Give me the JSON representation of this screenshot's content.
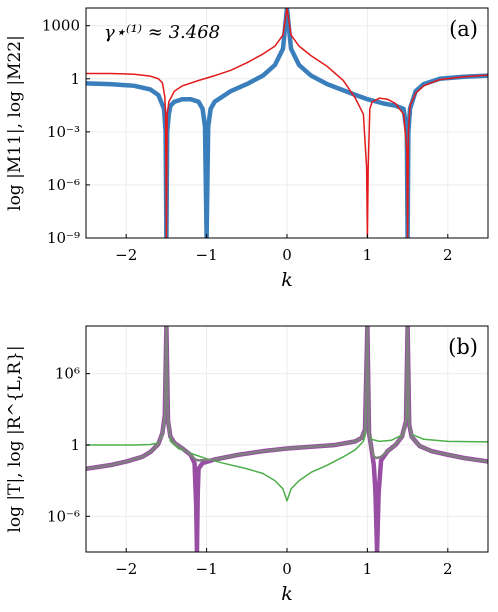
{
  "chart_data": [
    {
      "type": "line",
      "panel_label": "(a)",
      "annotation": "γ⋆⁽¹⁾ ≈ 3.468",
      "xlabel": "k",
      "ylabel": "log |M11|, log |M22|",
      "x_scale": "linear",
      "y_scale": "log",
      "xlim": [
        -2.5,
        2.5
      ],
      "ylim": [
        1e-09,
        10000
      ],
      "x_ticks": [
        -2,
        -1,
        0,
        1,
        2
      ],
      "x_tick_labels": [
        "−2",
        "−1",
        "0",
        "1",
        "2"
      ],
      "y_ticks": [
        1e-09,
        1e-06,
        0.001,
        1,
        1000
      ],
      "y_tick_labels": [
        "10⁻⁹",
        "10⁻⁶",
        "10⁻³",
        "1",
        "1000"
      ],
      "grid": true,
      "series": [
        {
          "color": "#3a7fbc",
          "style": "thick",
          "points": [
            [
              -2.5,
              0.55
            ],
            [
              -2.2,
              0.5
            ],
            [
              -1.9,
              0.4
            ],
            [
              -1.7,
              0.25
            ],
            [
              -1.6,
              0.12
            ],
            [
              -1.53,
              0.02
            ],
            [
              -1.51,
              0.001
            ],
            [
              -1.5,
              1e-09
            ],
            [
              -1.49,
              0.001
            ],
            [
              -1.47,
              0.01
            ],
            [
              -1.45,
              0.03
            ],
            [
              -1.4,
              0.05
            ],
            [
              -1.3,
              0.07
            ],
            [
              -1.2,
              0.07
            ],
            [
              -1.1,
              0.05
            ],
            [
              -1.05,
              0.02
            ],
            [
              -1.02,
              0.002
            ],
            [
              -1.0,
              1e-09
            ],
            [
              -0.98,
              0.002
            ],
            [
              -0.95,
              0.02
            ],
            [
              -0.9,
              0.05
            ],
            [
              -0.8,
              0.1
            ],
            [
              -0.7,
              0.2
            ],
            [
              -0.5,
              0.5
            ],
            [
              -0.3,
              1.5
            ],
            [
              -0.15,
              6
            ],
            [
              -0.05,
              50
            ],
            [
              0.0,
              10000
            ],
            [
              0.05,
              50
            ],
            [
              0.15,
              6
            ],
            [
              0.3,
              1.5
            ],
            [
              0.5,
              0.5
            ],
            [
              0.8,
              0.15
            ],
            [
              1.0,
              0.07
            ],
            [
              1.2,
              0.04
            ],
            [
              1.35,
              0.03
            ],
            [
              1.45,
              0.02
            ],
            [
              1.49,
              0.001
            ],
            [
              1.5,
              1e-09
            ],
            [
              1.51,
              0.001
            ],
            [
              1.53,
              0.02
            ],
            [
              1.6,
              0.2
            ],
            [
              1.7,
              0.5
            ],
            [
              1.9,
              1.0
            ],
            [
              2.2,
              1.3
            ],
            [
              2.5,
              1.5
            ]
          ]
        },
        {
          "color": "#e31a1c",
          "style": "thin",
          "points": [
            [
              -2.5,
              2.0
            ],
            [
              -2.2,
              2.0
            ],
            [
              -1.9,
              1.8
            ],
            [
              -1.7,
              1.4
            ],
            [
              -1.6,
              1.0
            ],
            [
              -1.55,
              0.6
            ],
            [
              -1.52,
              0.1
            ],
            [
              -1.51,
              0.01
            ],
            [
              -1.5,
              1e-09
            ],
            [
              -1.49,
              0.01
            ],
            [
              -1.47,
              0.05
            ],
            [
              -1.4,
              0.2
            ],
            [
              -1.3,
              0.4
            ],
            [
              -1.1,
              0.8
            ],
            [
              -0.9,
              1.5
            ],
            [
              -0.7,
              3
            ],
            [
              -0.5,
              8
            ],
            [
              -0.3,
              25
            ],
            [
              -0.15,
              70
            ],
            [
              -0.05,
              300
            ],
            [
              0.0,
              10000
            ],
            [
              0.05,
              300
            ],
            [
              0.15,
              70
            ],
            [
              0.3,
              20
            ],
            [
              0.5,
              5
            ],
            [
              0.7,
              0.8
            ],
            [
              0.85,
              0.08
            ],
            [
              0.95,
              0.01
            ],
            [
              0.99,
              1e-05
            ],
            [
              1.0,
              1e-09
            ],
            [
              1.01,
              1e-05
            ],
            [
              1.03,
              0.02
            ],
            [
              1.06,
              0.05
            ],
            [
              1.15,
              0.08
            ],
            [
              1.25,
              0.07
            ],
            [
              1.35,
              0.04
            ],
            [
              1.45,
              0.01
            ],
            [
              1.49,
              0.0001
            ],
            [
              1.5,
              1e-09
            ],
            [
              1.51,
              0.001
            ],
            [
              1.53,
              0.03
            ],
            [
              1.6,
              0.15
            ],
            [
              1.7,
              0.4
            ],
            [
              1.9,
              0.9
            ],
            [
              2.2,
              1.3
            ],
            [
              2.5,
              1.6
            ]
          ]
        }
      ]
    },
    {
      "type": "line",
      "panel_label": "(b)",
      "xlabel": "k",
      "ylabel": "log |T|, log |R^{L,R}|",
      "x_scale": "linear",
      "y_scale": "log",
      "xlim": [
        -2.5,
        2.5
      ],
      "ylim": [
        1e-09,
        10000000000.0
      ],
      "x_ticks": [
        -2,
        -1,
        0,
        1,
        2
      ],
      "x_tick_labels": [
        "−2",
        "−1",
        "0",
        "1",
        "2"
      ],
      "y_ticks": [
        1e-06,
        1,
        1000000.0
      ],
      "y_tick_labels": [
        "10⁻⁶",
        "1",
        "10⁶"
      ],
      "grid": true,
      "series": [
        {
          "color": "#984ea3",
          "style": "thick",
          "points": [
            [
              -2.5,
              0.01
            ],
            [
              -2.2,
              0.02
            ],
            [
              -2.0,
              0.04
            ],
            [
              -1.8,
              0.1
            ],
            [
              -1.7,
              0.25
            ],
            [
              -1.6,
              1.2
            ],
            [
              -1.55,
              10
            ],
            [
              -1.52,
              300
            ],
            [
              -1.5,
              10000000000.0
            ],
            [
              -1.48,
              100
            ],
            [
              -1.45,
              5
            ],
            [
              -1.4,
              1.5
            ],
            [
              -1.3,
              0.5
            ],
            [
              -1.2,
              0.15
            ],
            [
              -1.15,
              0.03
            ],
            [
              -1.13,
              1e-05
            ],
            [
              -1.12,
              1e-09
            ],
            [
              -1.11,
              0.0001
            ],
            [
              -1.1,
              0.01
            ],
            [
              -1.05,
              0.03
            ],
            [
              -0.9,
              0.06
            ],
            [
              -0.6,
              0.15
            ],
            [
              -0.3,
              0.3
            ],
            [
              0.0,
              0.5
            ],
            [
              0.3,
              0.7
            ],
            [
              0.6,
              1.0
            ],
            [
              0.85,
              2.0
            ],
            [
              0.93,
              4.0
            ],
            [
              0.97,
              20
            ],
            [
              1.0,
              10000000000.0
            ],
            [
              1.02,
              10
            ],
            [
              1.05,
              0.5
            ],
            [
              1.08,
              0.02
            ],
            [
              1.1,
              0.0001
            ],
            [
              1.12,
              1e-09
            ],
            [
              1.14,
              0.0001
            ],
            [
              1.17,
              0.05
            ],
            [
              1.25,
              0.3
            ],
            [
              1.35,
              1.0
            ],
            [
              1.43,
              5
            ],
            [
              1.48,
              100
            ],
            [
              1.5,
              10000000000.0
            ],
            [
              1.52,
              50
            ],
            [
              1.55,
              5
            ],
            [
              1.65,
              0.8
            ],
            [
              1.8,
              0.3
            ],
            [
              2.0,
              0.15
            ],
            [
              2.2,
              0.08
            ],
            [
              2.5,
              0.04
            ]
          ]
        },
        {
          "color": "#4daf4a",
          "style": "thin",
          "points": [
            [
              -2.5,
              1.0
            ],
            [
              -2.2,
              1.0
            ],
            [
              -1.9,
              1.0
            ],
            [
              -1.7,
              1.1
            ],
            [
              -1.6,
              1.5
            ],
            [
              -1.55,
              5
            ],
            [
              -1.52,
              100
            ],
            [
              -1.5,
              10000000000.0
            ],
            [
              -1.48,
              50
            ],
            [
              -1.45,
              2
            ],
            [
              -1.35,
              0.5
            ],
            [
              -1.2,
              0.2
            ],
            [
              -1.0,
              0.07
            ],
            [
              -0.8,
              0.03
            ],
            [
              -0.5,
              0.01
            ],
            [
              -0.3,
              0.004
            ],
            [
              -0.15,
              0.001
            ],
            [
              -0.05,
              0.0002
            ],
            [
              0.0,
              2e-05
            ],
            [
              0.05,
              0.0002
            ],
            [
              0.15,
              0.001
            ],
            [
              0.3,
              0.005
            ],
            [
              0.5,
              0.02
            ],
            [
              0.7,
              0.1
            ],
            [
              0.85,
              0.4
            ],
            [
              0.95,
              2
            ],
            [
              0.98,
              10
            ],
            [
              1.0,
              10000000000.0
            ],
            [
              1.02,
              10
            ],
            [
              1.05,
              3
            ],
            [
              1.15,
              2
            ],
            [
              1.3,
              2.5
            ],
            [
              1.45,
              8
            ],
            [
              1.49,
              200
            ],
            [
              1.5,
              10000000000.0
            ],
            [
              1.51,
              200
            ],
            [
              1.55,
              8
            ],
            [
              1.7,
              3
            ],
            [
              2.0,
              2
            ],
            [
              2.5,
              1.8
            ]
          ]
        },
        {
          "color": "#7f7f7f",
          "style": "medium",
          "points": [
            [
              -2.5,
              0.01
            ],
            [
              -2.2,
              0.02
            ],
            [
              -2.0,
              0.04
            ],
            [
              -1.8,
              0.1
            ],
            [
              -1.7,
              0.25
            ],
            [
              -1.6,
              1.2
            ],
            [
              -1.55,
              10
            ],
            [
              -1.52,
              300
            ],
            [
              -1.5,
              10000000000.0
            ],
            [
              -1.48,
              100
            ],
            [
              -1.45,
              5
            ],
            [
              -1.4,
              1.5
            ],
            [
              -1.3,
              0.5
            ],
            [
              -1.2,
              0.15
            ],
            [
              -1.16,
              0.08
            ],
            [
              -1.14,
              0.06
            ],
            [
              -1.1,
              0.05
            ],
            [
              -0.9,
              0.06
            ],
            [
              -0.6,
              0.15
            ],
            [
              -0.3,
              0.3
            ],
            [
              0.0,
              0.5
            ],
            [
              0.3,
              0.7
            ],
            [
              0.6,
              1.0
            ],
            [
              0.85,
              2.0
            ],
            [
              0.93,
              4.0
            ],
            [
              0.97,
              20
            ],
            [
              1.0,
              10000000000.0
            ],
            [
              1.02,
              10
            ],
            [
              1.05,
              0.5
            ],
            [
              1.08,
              0.1
            ],
            [
              1.12,
              0.08
            ],
            [
              1.17,
              0.1
            ],
            [
              1.25,
              0.3
            ],
            [
              1.35,
              1.0
            ],
            [
              1.43,
              5
            ],
            [
              1.48,
              100
            ],
            [
              1.5,
              10000000000.0
            ],
            [
              1.52,
              50
            ],
            [
              1.55,
              5
            ],
            [
              1.65,
              0.8
            ],
            [
              1.8,
              0.3
            ],
            [
              2.0,
              0.15
            ],
            [
              2.2,
              0.08
            ],
            [
              2.5,
              0.04
            ]
          ]
        }
      ]
    }
  ]
}
